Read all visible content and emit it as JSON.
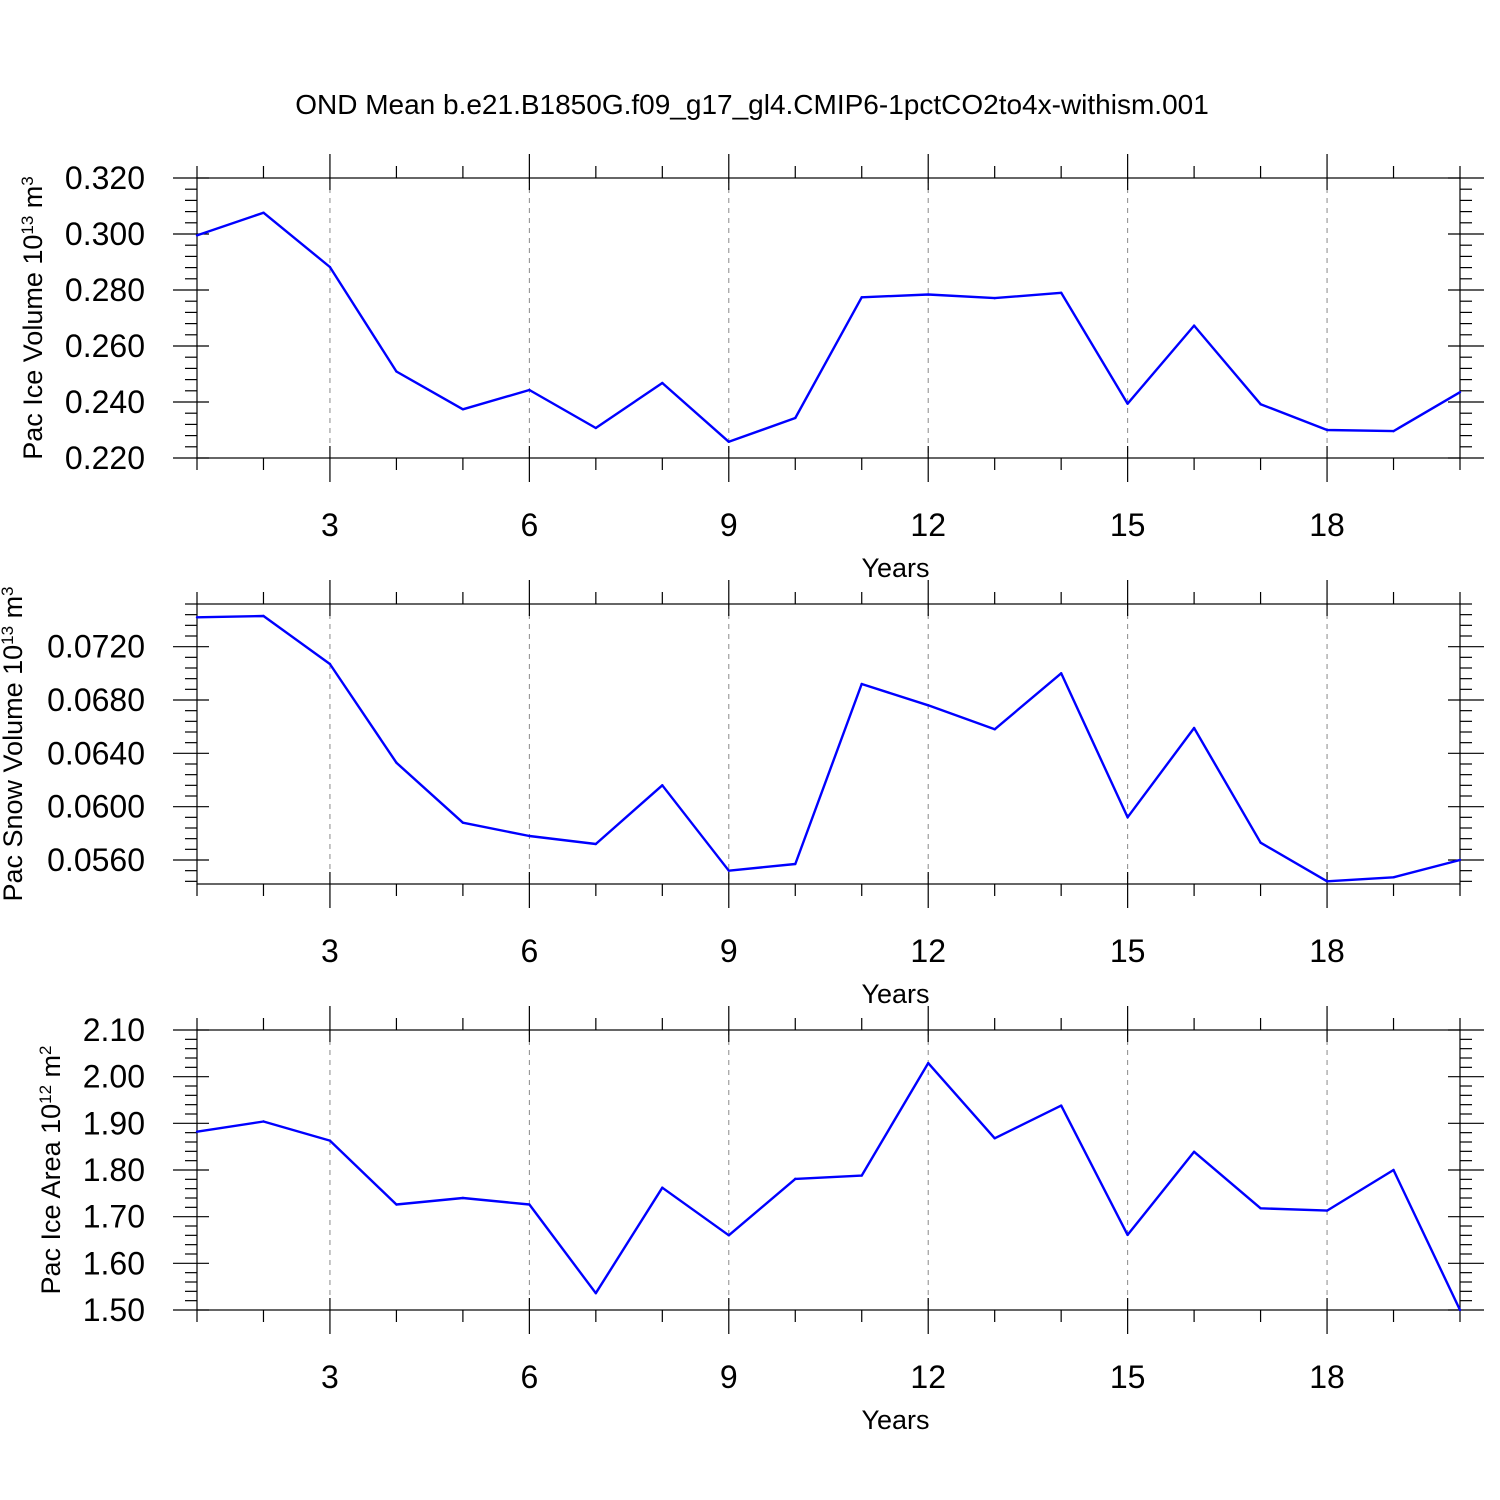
{
  "figure_title": "OND Mean b.e21.B1850G.f09_g17_gl4.CMIP6-1pctCO2to4x-withism.001",
  "colors": {
    "line": "#0000ff",
    "grid": "#8a8a8a",
    "axes": "#000000"
  },
  "chart_data": [
    {
      "type": "line",
      "xlabel": "Years",
      "ylabel_base": "Pac Ice Volume 10",
      "ylabel_exp": "13",
      "ylabel_unit": " m",
      "ylabel_unit_exp": "3",
      "xlim": [
        1,
        20
      ],
      "ylim": [
        0.22,
        0.32
      ],
      "xticks": [
        3,
        6,
        9,
        12,
        15,
        18
      ],
      "xtick_labels": [
        "3",
        "6",
        "9",
        "12",
        "15",
        "18"
      ],
      "yticks": [
        0.22,
        0.24,
        0.26,
        0.28,
        0.3,
        0.32
      ],
      "ytick_labels": [
        "0.220",
        "0.240",
        "0.260",
        "0.280",
        "0.300",
        "0.320"
      ],
      "grid": "vertical dashed at major x ticks",
      "x": [
        1,
        2,
        3,
        4,
        5,
        6,
        7,
        8,
        9,
        10,
        11,
        12,
        13,
        14,
        15,
        16,
        17,
        18,
        19,
        20
      ],
      "values": [
        0.2995,
        0.3076,
        0.2882,
        0.2509,
        0.2374,
        0.2443,
        0.2307,
        0.2468,
        0.2258,
        0.2343,
        0.2774,
        0.2784,
        0.2771,
        0.279,
        0.2394,
        0.2673,
        0.2392,
        0.23,
        0.2296,
        0.2435
      ]
    },
    {
      "type": "line",
      "xlabel": "Years",
      "ylabel_base": "Pac Snow Volume 10",
      "ylabel_exp": "13",
      "ylabel_unit": " m",
      "ylabel_unit_exp": "3",
      "xlim": [
        1,
        20
      ],
      "ylim": [
        0.0542,
        0.0752
      ],
      "xticks": [
        3,
        6,
        9,
        12,
        15,
        18
      ],
      "xtick_labels": [
        "3",
        "6",
        "9",
        "12",
        "15",
        "18"
      ],
      "yticks": [
        0.056,
        0.06,
        0.064,
        0.068,
        0.072
      ],
      "ytick_labels": [
        "0.0560",
        "0.0600",
        "0.0640",
        "0.0680",
        "0.0720"
      ],
      "grid": "vertical dashed at major x ticks",
      "x": [
        1,
        2,
        3,
        4,
        5,
        6,
        7,
        8,
        9,
        10,
        11,
        12,
        13,
        14,
        15,
        16,
        17,
        18,
        19,
        20
      ],
      "values": [
        0.0742,
        0.0743,
        0.0707,
        0.0633,
        0.0588,
        0.0578,
        0.0572,
        0.0616,
        0.0552,
        0.0557,
        0.0692,
        0.0676,
        0.0658,
        0.07,
        0.0592,
        0.0659,
        0.0573,
        0.0544,
        0.0547,
        0.056
      ]
    },
    {
      "type": "line",
      "xlabel": "Years",
      "ylabel_base": "Pac Ice Area 10",
      "ylabel_exp": "12",
      "ylabel_unit": " m",
      "ylabel_unit_exp": "2",
      "xlim": [
        1,
        20
      ],
      "ylim": [
        1.5,
        2.1
      ],
      "xticks": [
        3,
        6,
        9,
        12,
        15,
        18
      ],
      "xtick_labels": [
        "3",
        "6",
        "9",
        "12",
        "15",
        "18"
      ],
      "yticks": [
        1.5,
        1.6,
        1.7,
        1.8,
        1.9,
        2.0,
        2.1
      ],
      "ytick_labels": [
        "1.50",
        "1.60",
        "1.70",
        "1.80",
        "1.90",
        "2.00",
        "2.10"
      ],
      "grid": "vertical dashed at major x ticks",
      "x": [
        1,
        2,
        3,
        4,
        5,
        6,
        7,
        8,
        9,
        10,
        11,
        12,
        13,
        14,
        15,
        16,
        17,
        18,
        19,
        20
      ],
      "values": [
        1.882,
        1.904,
        1.863,
        1.726,
        1.74,
        1.726,
        1.536,
        1.762,
        1.66,
        1.781,
        1.788,
        2.029,
        1.868,
        1.938,
        1.661,
        1.839,
        1.718,
        1.713,
        1.8,
        1.5
      ]
    }
  ]
}
